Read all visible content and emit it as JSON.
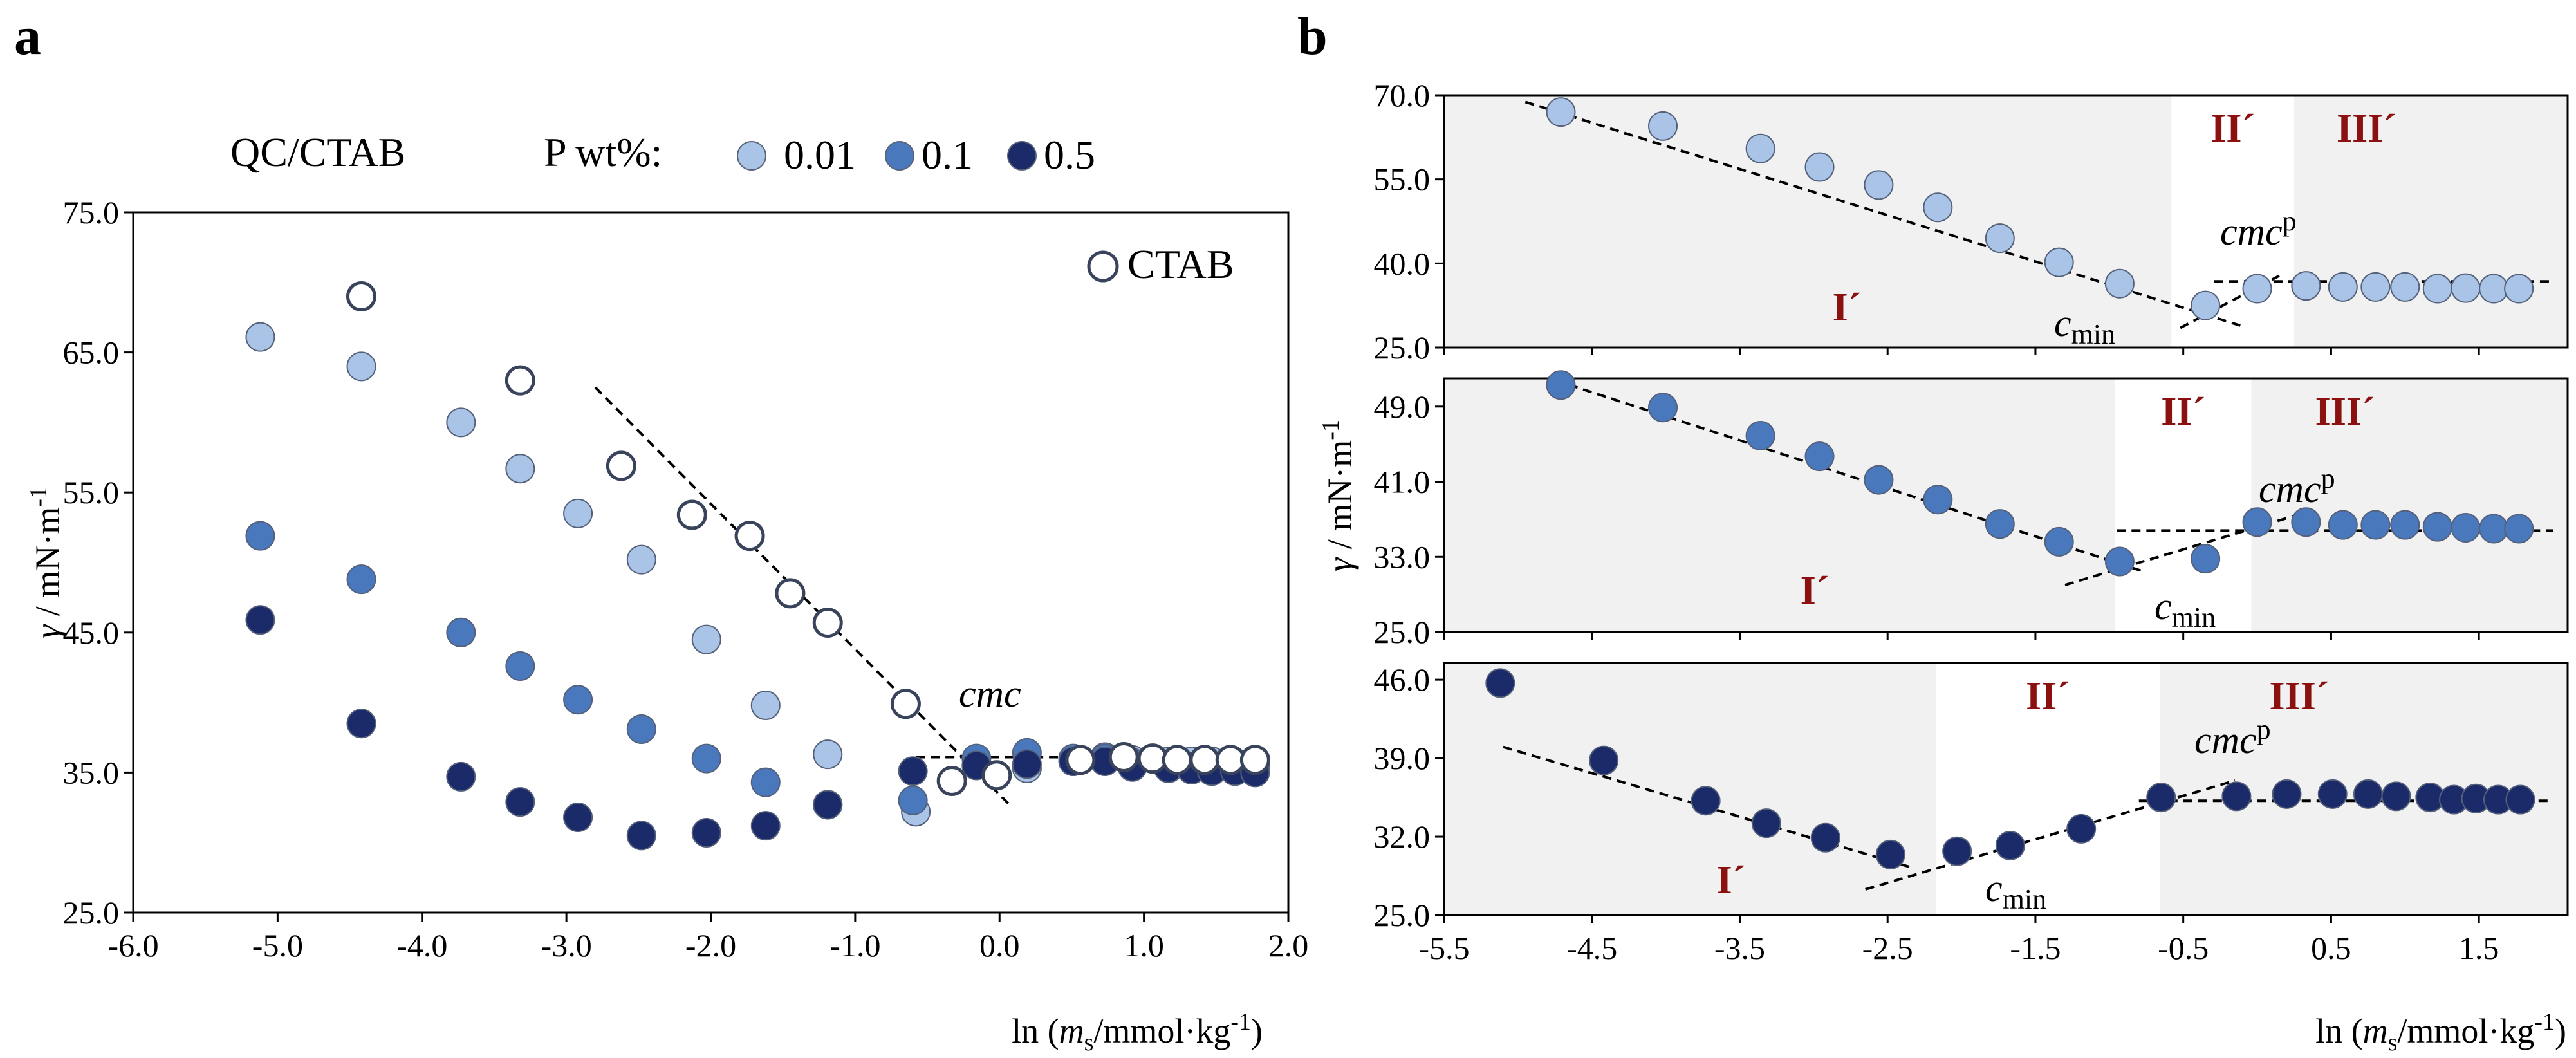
{
  "chart_data": [
    {
      "panel": "a",
      "type": "scatter",
      "title": "QC/CTAB",
      "legend_title": "P wt%:",
      "xlabel": "ln (m_s/mmol·kg⁻¹)",
      "xlabel_parts": {
        "pre": "ln (",
        "sym": "m",
        "sub": "s",
        "post": "/mmol·kg",
        "sup": "-1",
        "close": ")"
      },
      "ylabel": "γ / mN·m⁻¹",
      "xlim": [
        -6.0,
        2.0
      ],
      "ylim": [
        25.0,
        75.0
      ],
      "xticks": [
        "-6.0",
        "-5.0",
        "-4.0",
        "-3.0",
        "-2.0",
        "-1.0",
        "0.0",
        "1.0",
        "2.0"
      ],
      "yticks": [
        "25.0",
        "35.0",
        "45.0",
        "55.0",
        "65.0",
        "75.0"
      ],
      "annotation": "cmc",
      "series": [
        {
          "name": "0.01",
          "color": "#a9c4e6",
          "points": [
            [
              -5.12,
              66.1
            ],
            [
              -4.42,
              64.0
            ],
            [
              -3.73,
              60.0
            ],
            [
              -3.32,
              56.7
            ],
            [
              -2.92,
              53.5
            ],
            [
              -2.48,
              50.2
            ],
            [
              -2.03,
              44.5
            ],
            [
              -1.62,
              39.8
            ],
            [
              -1.19,
              36.3
            ],
            [
              -0.58,
              32.2
            ],
            [
              0.19,
              35.3
            ],
            [
              0.51,
              35.8
            ],
            [
              0.73,
              36.1
            ],
            [
              0.92,
              35.9
            ],
            [
              1.17,
              35.8
            ],
            [
              1.33,
              35.8
            ],
            [
              1.47,
              35.8
            ],
            [
              1.63,
              35.7
            ],
            [
              1.77,
              35.6
            ]
          ]
        },
        {
          "name": "0.1",
          "color": "#4a78bc",
          "points": [
            [
              -5.12,
              51.9
            ],
            [
              -4.42,
              48.8
            ],
            [
              -3.73,
              45.0
            ],
            [
              -3.32,
              42.6
            ],
            [
              -2.92,
              40.2
            ],
            [
              -2.48,
              38.1
            ],
            [
              -2.03,
              36.0
            ],
            [
              -1.62,
              34.3
            ],
            [
              -1.19,
              32.7
            ],
            [
              -0.6,
              33.0
            ],
            [
              -0.16,
              36.0
            ],
            [
              0.19,
              36.4
            ],
            [
              0.51,
              36.0
            ],
            [
              0.73,
              36.0
            ],
            [
              0.92,
              35.7
            ],
            [
              1.17,
              35.6
            ],
            [
              1.33,
              35.4
            ],
            [
              1.47,
              35.5
            ],
            [
              1.63,
              35.3
            ],
            [
              1.77,
              35.2
            ]
          ]
        },
        {
          "name": "0.5",
          "color": "#1b2a68",
          "points": [
            [
              -5.12,
              45.9
            ],
            [
              -4.42,
              38.5
            ],
            [
              -3.73,
              34.7
            ],
            [
              -3.32,
              32.9
            ],
            [
              -2.92,
              31.8
            ],
            [
              -2.48,
              30.5
            ],
            [
              -2.03,
              30.7
            ],
            [
              -1.62,
              31.2
            ],
            [
              -1.19,
              32.7
            ],
            [
              -0.6,
              35.1
            ],
            [
              -0.16,
              35.5
            ],
            [
              0.19,
              35.6
            ],
            [
              0.51,
              35.8
            ],
            [
              0.73,
              35.8
            ],
            [
              0.92,
              35.4
            ],
            [
              1.17,
              35.3
            ],
            [
              1.33,
              35.2
            ],
            [
              1.47,
              35.1
            ],
            [
              1.63,
              35.1
            ],
            [
              1.77,
              35.0
            ]
          ]
        },
        {
          "name": "CTAB",
          "color": "#ffffff",
          "stroke": "#39445c",
          "open": true,
          "points": [
            [
              -4.42,
              69.0
            ],
            [
              -3.32,
              63.0
            ],
            [
              -2.62,
              56.9
            ],
            [
              -2.13,
              53.4
            ],
            [
              -1.73,
              51.9
            ],
            [
              -1.45,
              47.8
            ],
            [
              -1.19,
              45.7
            ],
            [
              -0.65,
              39.9
            ],
            [
              -0.33,
              34.4
            ],
            [
              -0.02,
              34.8
            ],
            [
              0.56,
              35.9
            ],
            [
              0.86,
              36.1
            ],
            [
              1.06,
              36.0
            ],
            [
              1.23,
              35.9
            ],
            [
              1.42,
              35.9
            ],
            [
              1.6,
              35.9
            ],
            [
              1.77,
              35.9
            ]
          ]
        }
      ],
      "fit_lines": [
        [
          [
            -2.8,
            62.5
          ],
          [
            0.06,
            32.8
          ]
        ],
        [
          [
            -0.58,
            36.1
          ],
          [
            1.86,
            36.1
          ]
        ]
      ]
    },
    {
      "panel": "b",
      "type": "scatter",
      "xlabel": "ln (m_s/mmol·kg⁻¹)",
      "ylabel": "γ / mN·m⁻¹",
      "xlim": [
        -5.5,
        2.1
      ],
      "xticks": [
        "-5.5",
        "-4.5",
        "-3.5",
        "-2.5",
        "-1.5",
        "-0.5",
        "0.5",
        "1.5"
      ],
      "subplots": [
        {
          "name": "0.01",
          "color": "#a9c4e6",
          "ylim": [
            25.0,
            70.0
          ],
          "yticks": [
            "25.0",
            "40.0",
            "55.0",
            "70.0"
          ],
          "regions": {
            "I": [
              -5.5,
              -0.58
            ],
            "II": [
              -0.58,
              0.25
            ],
            "III": [
              0.25,
              2.1
            ]
          },
          "labels": {
            "I": "I´",
            "II": "II´",
            "III": "III´",
            "cmin": "c",
            "cmin_sub": "min",
            "cmcp": "cmc",
            "cmcp_sup": "p"
          },
          "points": [
            [
              -4.71,
              67.0
            ],
            [
              -4.02,
              64.5
            ],
            [
              -3.36,
              60.5
            ],
            [
              -2.96,
              57.2
            ],
            [
              -2.56,
              54.0
            ],
            [
              -2.16,
              50.0
            ],
            [
              -1.74,
              44.5
            ],
            [
              -1.34,
              40.2
            ],
            [
              -0.93,
              36.4
            ],
            [
              -0.35,
              32.5
            ],
            [
              0.0,
              35.5
            ],
            [
              0.33,
              36.0
            ],
            [
              0.58,
              35.8
            ],
            [
              0.8,
              35.8
            ],
            [
              1.0,
              35.8
            ],
            [
              1.22,
              35.5
            ],
            [
              1.41,
              35.6
            ],
            [
              1.6,
              35.5
            ],
            [
              1.77,
              35.5
            ]
          ],
          "fit_lines": [
            [
              [
                -4.95,
                68.8
              ],
              [
                -0.1,
                28.8
              ]
            ],
            [
              [
                -0.52,
                28.5
              ],
              [
                0.15,
                37.8
              ]
            ],
            [
              [
                -0.29,
                36.8
              ],
              [
                2.0,
                36.8
              ]
            ]
          ]
        },
        {
          "name": "0.1",
          "color": "#4a78bc",
          "ylim": [
            25.0,
            52.0
          ],
          "yticks": [
            "25.0",
            "33.0",
            "41.0",
            "49.0"
          ],
          "regions": {
            "I": [
              -5.5,
              -0.96
            ],
            "II": [
              -0.96,
              -0.04
            ],
            "III": [
              -0.04,
              2.1
            ]
          },
          "labels": {
            "I": "I´",
            "II": "II´",
            "III": "III´",
            "cmin": "c",
            "cmin_sub": "min",
            "cmcp": "cmc",
            "cmcp_sup": "p"
          },
          "points": [
            [
              -4.71,
              51.3
            ],
            [
              -4.02,
              48.9
            ],
            [
              -3.36,
              45.9
            ],
            [
              -2.96,
              43.7
            ],
            [
              -2.56,
              41.2
            ],
            [
              -2.16,
              39.1
            ],
            [
              -1.74,
              36.5
            ],
            [
              -1.34,
              34.6
            ],
            [
              -0.93,
              32.5
            ],
            [
              -0.35,
              32.8
            ],
            [
              0.0,
              36.7
            ],
            [
              0.33,
              36.7
            ],
            [
              0.58,
              36.4
            ],
            [
              0.8,
              36.4
            ],
            [
              1.0,
              36.4
            ],
            [
              1.22,
              36.2
            ],
            [
              1.41,
              36.1
            ],
            [
              1.6,
              36.0
            ],
            [
              1.77,
              36.0
            ]
          ],
          "fit_lines": [
            [
              [
                -4.75,
                51.8
              ],
              [
                -0.78,
                31.5
              ]
            ],
            [
              [
                -1.3,
                30.0
              ],
              [
                0.28,
                37.5
              ]
            ],
            [
              [
                -0.95,
                35.8
              ],
              [
                2.0,
                35.8
              ]
            ]
          ]
        },
        {
          "name": "0.5",
          "color": "#1b2a68",
          "ylim": [
            25.0,
            47.5
          ],
          "yticks": [
            "25.0",
            "32.0",
            "39.0",
            "46.0"
          ],
          "regions": {
            "I": [
              -5.5,
              -2.17
            ],
            "II": [
              -2.17,
              -0.66
            ],
            "III": [
              -0.66,
              2.1
            ]
          },
          "labels": {
            "I": "I´",
            "II": "II´",
            "III": "III´",
            "cmin": "c",
            "cmin_sub": "min",
            "cmcp": "cmc",
            "cmcp_sup": "p"
          },
          "points": [
            [
              -5.12,
              45.7
            ],
            [
              -4.42,
              38.8
            ],
            [
              -3.73,
              35.2
            ],
            [
              -3.32,
              33.2
            ],
            [
              -2.92,
              31.9
            ],
            [
              -2.48,
              30.4
            ],
            [
              -2.03,
              30.7
            ],
            [
              -1.67,
              31.2
            ],
            [
              -1.19,
              32.7
            ],
            [
              -0.65,
              35.5
            ],
            [
              -0.14,
              35.6
            ],
            [
              0.2,
              35.8
            ],
            [
              0.51,
              35.8
            ],
            [
              0.75,
              35.8
            ],
            [
              0.94,
              35.6
            ],
            [
              1.17,
              35.5
            ],
            [
              1.33,
              35.3
            ],
            [
              1.48,
              35.4
            ],
            [
              1.63,
              35.3
            ],
            [
              1.78,
              35.3
            ]
          ],
          "fit_lines": [
            [
              [
                -5.1,
                40.0
              ],
              [
                -2.35,
                29.3
              ]
            ],
            [
              [
                -2.65,
                27.3
              ],
              [
                -0.15,
                37.0
              ]
            ],
            [
              [
                -0.8,
                35.2
              ],
              [
                2.0,
                35.2
              ]
            ]
          ]
        }
      ]
    }
  ]
}
